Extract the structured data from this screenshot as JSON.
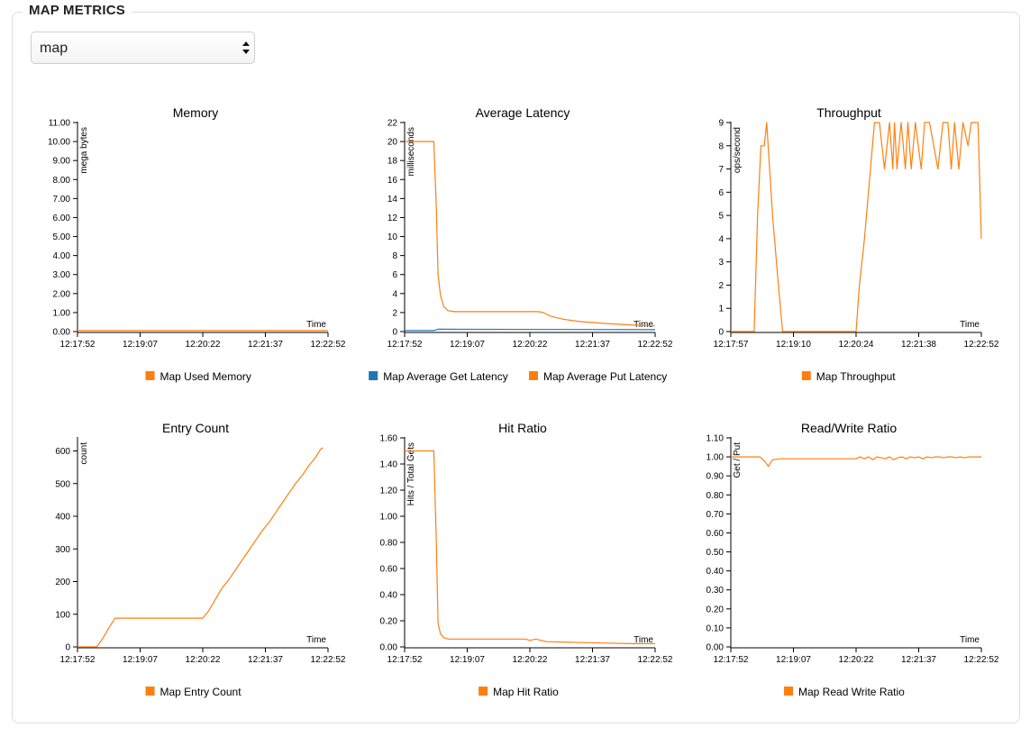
{
  "section": {
    "title": "MAP METRICS"
  },
  "map_select": {
    "value": "map"
  },
  "colors": {
    "orange": "#ff7f0e",
    "blue": "#1f77b4"
  },
  "chart_data": [
    {
      "id": "memory",
      "type": "line",
      "title": "Memory",
      "xlabel": "Time",
      "ylabel": "mega bytes",
      "ylim": [
        0,
        11
      ],
      "ytick_labels": [
        "0.00",
        "1.00",
        "2.00",
        "3.00",
        "4.00",
        "5.00",
        "6.00",
        "7.00",
        "8.00",
        "9.00",
        "10.00",
        "11.00"
      ],
      "xlim": [
        0,
        300
      ],
      "xtick_labels": [
        "12:17:52",
        "12:19:07",
        "12:20:22",
        "12:21:37",
        "12:22:52"
      ],
      "series": [
        {
          "name": "Map Used Memory",
          "color": "#ff7f0e",
          "x": [
            0,
            300
          ],
          "y": [
            0.05,
            0.05
          ]
        }
      ]
    },
    {
      "id": "latency",
      "type": "line",
      "title": "Average Latency",
      "xlabel": "Time",
      "ylabel": "milliseconds",
      "ylim": [
        0,
        22
      ],
      "ytick_labels": [
        "0",
        "2",
        "4",
        "6",
        "8",
        "10",
        "12",
        "14",
        "16",
        "18",
        "20",
        "22"
      ],
      "xlim": [
        0,
        300
      ],
      "xtick_labels": [
        "12:17:52",
        "12:19:07",
        "12:20:22",
        "12:21:37",
        "12:22:52"
      ],
      "series": [
        {
          "name": "Map Average Get Latency",
          "color": "#1f77b4",
          "x": [
            0,
            35,
            40,
            300
          ],
          "y": [
            0.1,
            0.1,
            0.25,
            0.2
          ]
        },
        {
          "name": "Map Average Put Latency",
          "color": "#ff7f0e",
          "x": [
            0,
            35,
            38,
            40,
            43,
            47,
            52,
            60,
            80,
            120,
            160,
            166,
            175,
            190,
            210,
            240,
            270,
            300
          ],
          "y": [
            20,
            20,
            13,
            6,
            3.8,
            2.6,
            2.2,
            2.1,
            2.1,
            2.1,
            2.1,
            2.0,
            1.6,
            1.3,
            1.05,
            0.85,
            0.7,
            0.6
          ]
        }
      ]
    },
    {
      "id": "throughput",
      "type": "line",
      "title": "Throughput",
      "xlabel": "Time",
      "ylabel": "ops/second",
      "ylim": [
        0,
        10
      ],
      "ytick_labels": [
        "0",
        "1",
        "2",
        "3",
        "4",
        "5",
        "6",
        "7",
        "8",
        "9"
      ],
      "xlim": [
        0,
        300
      ],
      "xtick_labels": [
        "12:17:57",
        "12:19:10",
        "12:20:24",
        "12:21:38",
        "12:22:52"
      ],
      "series": [
        {
          "name": "Map Throughput",
          "color": "#ff7f0e",
          "x": [
            0,
            28,
            32,
            36,
            40,
            43,
            50,
            57,
            62,
            150,
            154,
            160,
            172,
            178,
            184,
            190,
            194,
            196,
            199,
            204,
            209,
            212,
            216,
            221,
            228,
            232,
            238,
            248,
            254,
            260,
            264,
            268,
            273,
            278,
            284,
            288,
            292,
            296,
            300
          ],
          "y": [
            0,
            0,
            5,
            8,
            8,
            9,
            5,
            2,
            0,
            0,
            2,
            4,
            9,
            9,
            7,
            9,
            7,
            9,
            7,
            9,
            7,
            9,
            7,
            9,
            7,
            9,
            9,
            7,
            9,
            9,
            7,
            9,
            7,
            9,
            8,
            9,
            9,
            9,
            4
          ]
        }
      ]
    },
    {
      "id": "entry_count",
      "type": "line",
      "title": "Entry Count",
      "xlabel": "Time",
      "ylabel": "count",
      "ylim": [
        0,
        640
      ],
      "ytick_labels": [
        "0",
        "100",
        "200",
        "300",
        "400",
        "500",
        "600"
      ],
      "ytick_values": [
        0,
        100,
        200,
        300,
        400,
        500,
        600
      ],
      "xlim": [
        0,
        300
      ],
      "xtick_labels": [
        "12:17:52",
        "12:19:07",
        "12:20:22",
        "12:21:37",
        "12:22:52"
      ],
      "series": [
        {
          "name": "Map Entry Count",
          "color": "#ff7f0e",
          "x": [
            0,
            23,
            30,
            38,
            45,
            90,
            140,
            150,
            157,
            165,
            173,
            181,
            189,
            197,
            205,
            213,
            221,
            229,
            237,
            245,
            253,
            261,
            269,
            277,
            285,
            291,
            294
          ],
          "y": [
            0,
            0,
            25,
            60,
            88,
            88,
            88,
            88,
            110,
            145,
            180,
            205,
            235,
            265,
            295,
            325,
            355,
            380,
            410,
            440,
            470,
            500,
            525,
            555,
            580,
            605,
            610
          ]
        }
      ]
    },
    {
      "id": "hit_ratio",
      "type": "line",
      "title": "Hit Ratio",
      "xlabel": "Time",
      "ylabel": "Hits / Total Gets",
      "ylim": [
        0,
        1.6
      ],
      "ytick_labels": [
        "0.00",
        "0.20",
        "0.40",
        "0.60",
        "0.80",
        "1.00",
        "1.20",
        "1.40",
        "1.60"
      ],
      "xlim": [
        0,
        300
      ],
      "xtick_labels": [
        "12:17:52",
        "12:19:07",
        "12:20:22",
        "12:21:37",
        "12:22:52"
      ],
      "series": [
        {
          "name": "Map Hit Ratio",
          "color": "#ff7f0e",
          "x": [
            0,
            35,
            38,
            40,
            43,
            47,
            52,
            60,
            100,
            145,
            150,
            157,
            170,
            200,
            240,
            270,
            300
          ],
          "y": [
            1.5,
            1.5,
            0.8,
            0.18,
            0.1,
            0.07,
            0.06,
            0.06,
            0.06,
            0.06,
            0.05,
            0.06,
            0.04,
            0.035,
            0.03,
            0.025,
            0.025
          ]
        }
      ]
    },
    {
      "id": "rw_ratio",
      "type": "line",
      "title": "Read/Write Ratio",
      "xlabel": "Time",
      "ylabel": "Get / Put",
      "ylim": [
        0,
        1.1
      ],
      "ytick_labels": [
        "0.00",
        "0.10",
        "0.20",
        "0.30",
        "0.40",
        "0.50",
        "0.60",
        "0.70",
        "0.80",
        "0.90",
        "1.00",
        "1.10"
      ],
      "xlim": [
        0,
        300
      ],
      "xtick_labels": [
        "12:17:52",
        "12:19:07",
        "12:20:22",
        "12:21:37",
        "12:22:52"
      ],
      "series": [
        {
          "name": "Map Read Write Ratio",
          "color": "#ff7f0e",
          "x": [
            0,
            35,
            40,
            45,
            50,
            60,
            100,
            150,
            155,
            160,
            165,
            170,
            175,
            180,
            185,
            190,
            195,
            200,
            205,
            210,
            215,
            220,
            225,
            230,
            235,
            240,
            245,
            250,
            255,
            260,
            265,
            270,
            275,
            280,
            285,
            290,
            295,
            300
          ],
          "y": [
            1.0,
            1.0,
            0.98,
            0.95,
            0.985,
            0.99,
            0.99,
            0.99,
            1.0,
            0.99,
            1.0,
            0.985,
            1.0,
            0.995,
            0.99,
            1.0,
            0.985,
            0.995,
            1.0,
            0.99,
            1.0,
            0.995,
            1.0,
            0.99,
            1.0,
            0.995,
            1.0,
            1.0,
            0.995,
            1.0,
            1.0,
            0.995,
            1.0,
            0.995,
            1.0,
            1.0,
            1.0,
            1.0
          ]
        }
      ]
    }
  ]
}
